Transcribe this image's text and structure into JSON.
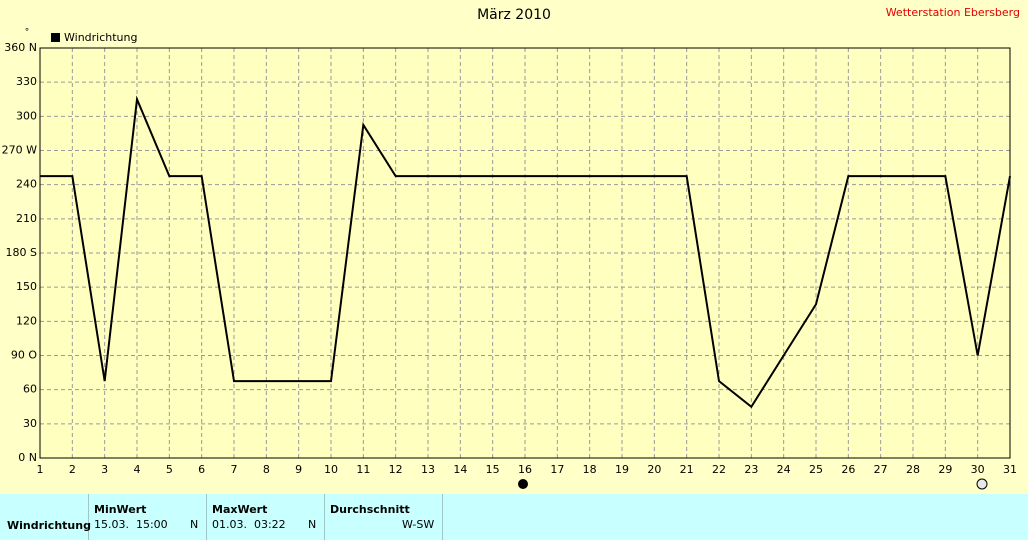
{
  "chart_data": {
    "type": "line",
    "title": "März 2010",
    "source": "Wetterstation Ebersberg",
    "unit": "°",
    "x": [
      1,
      2,
      3,
      4,
      5,
      6,
      7,
      8,
      9,
      10,
      11,
      12,
      13,
      14,
      15,
      16,
      17,
      18,
      19,
      20,
      21,
      22,
      23,
      24,
      25,
      26,
      27,
      28,
      29,
      30,
      31
    ],
    "series": [
      {
        "name": "Windrichtung",
        "color": "#000000",
        "values": [
          247.5,
          247.5,
          67.5,
          315,
          247.5,
          247.5,
          67.5,
          67.5,
          67.5,
          67.5,
          292.5,
          247.5,
          247.5,
          247.5,
          247.5,
          247.5,
          247.5,
          247.5,
          247.5,
          247.5,
          247.5,
          67.5,
          45,
          90,
          135,
          247.5,
          247.5,
          247.5,
          247.5,
          90,
          247.5
        ]
      }
    ],
    "xlim": [
      1,
      31
    ],
    "xticks": [
      1,
      2,
      3,
      4,
      5,
      6,
      7,
      8,
      9,
      10,
      11,
      12,
      13,
      14,
      15,
      16,
      17,
      18,
      19,
      20,
      21,
      22,
      23,
      24,
      25,
      26,
      27,
      28,
      29,
      30,
      31
    ],
    "ylim": [
      0,
      360
    ],
    "yticks": [
      {
        "value": 0,
        "label": "0 N"
      },
      30,
      60,
      {
        "value": 90,
        "label": "90 O"
      },
      120,
      150,
      {
        "value": 180,
        "label": "180 S"
      },
      210,
      240,
      {
        "value": 270,
        "label": "270 W"
      },
      300,
      330,
      {
        "value": 360,
        "label": "360 N"
      }
    ],
    "grid": true
  },
  "table": {
    "headers": [
      "MinWert",
      "MaxWert",
      "Durchschnitt"
    ],
    "rows": [
      [
        "Windrichtung",
        "15.03.  15:00",
        "N",
        "01.03.  03:22",
        "N",
        "W-SW"
      ]
    ]
  }
}
